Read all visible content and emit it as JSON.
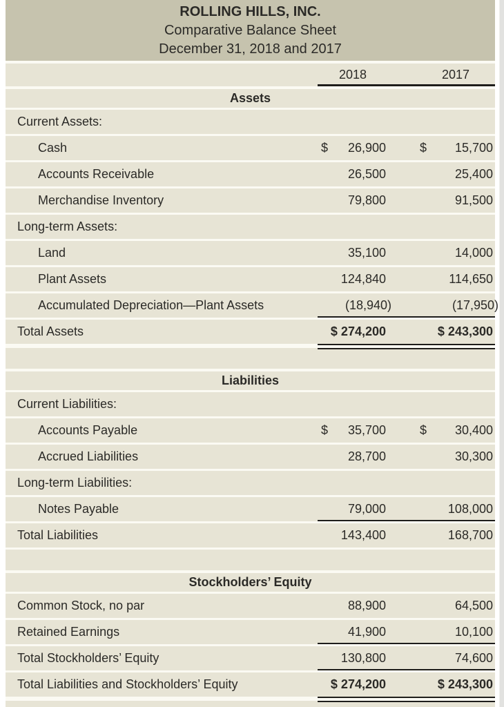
{
  "title_block": {
    "company": "ROLLING HILLS, INC.",
    "statement": "Comparative Balance Sheet",
    "period": "December 31, 2018 and 2017"
  },
  "column_headers": {
    "year1": "2018",
    "year2": "2017"
  },
  "rows": [
    {
      "type": "years",
      "v1": "2018",
      "v2": "2017"
    },
    {
      "type": "section-title",
      "label": "Assets"
    },
    {
      "type": "group",
      "label": "Current Assets:"
    },
    {
      "type": "item",
      "label": "Cash",
      "dollar1": "$",
      "dollar2": "$",
      "v1": "26,900",
      "v2": "15,700"
    },
    {
      "type": "item",
      "label": "Accounts Receivable",
      "v1": "26,500",
      "v2": "25,400"
    },
    {
      "type": "item",
      "label": "Merchandise Inventory",
      "v1": "79,800",
      "v2": "91,500"
    },
    {
      "type": "group",
      "label": "Long-term Assets:"
    },
    {
      "type": "item",
      "label": "Land",
      "v1": "35,100",
      "v2": "14,000"
    },
    {
      "type": "item",
      "label": "Plant Assets",
      "v1": "124,840",
      "v2": "114,650"
    },
    {
      "type": "item",
      "label": "Accumulated Depreciation—Plant Assets",
      "v1": "(18,940)",
      "v2": "(17,950)",
      "negative": true,
      "rule_below": true
    },
    {
      "type": "total",
      "label": "Total Assets",
      "v1": "$ 274,200",
      "v2": "$ 243,300",
      "bold_values": true,
      "double_rule_below": true
    },
    {
      "type": "spacer"
    },
    {
      "type": "section-title",
      "label": "Liabilities"
    },
    {
      "type": "group",
      "label": "Current Liabilities:"
    },
    {
      "type": "item",
      "label": "Accounts Payable",
      "dollar1": "$",
      "dollar2": "$",
      "v1": "35,700",
      "v2": "30,400"
    },
    {
      "type": "item",
      "label": "Accrued Liabilities",
      "v1": "28,700",
      "v2": "30,300"
    },
    {
      "type": "group",
      "label": "Long-term Liabilities:"
    },
    {
      "type": "item",
      "label": "Notes Payable",
      "v1": "79,000",
      "v2": "108,000",
      "rule_below": true
    },
    {
      "type": "total",
      "label": "Total Liabilities",
      "v1": "143,400",
      "v2": "168,700"
    },
    {
      "type": "spacer"
    },
    {
      "type": "section-title",
      "label": "Stockholders’ Equity"
    },
    {
      "type": "group",
      "label": "Common Stock, no par",
      "v1": "88,900",
      "v2": "64,500"
    },
    {
      "type": "group",
      "label": "Retained Earnings",
      "v1": "41,900",
      "v2": "10,100",
      "rule_below": true
    },
    {
      "type": "total",
      "label": "Total Stockholders’ Equity",
      "v1": "130,800",
      "v2": "74,600",
      "rule_below": true
    },
    {
      "type": "total",
      "label": "Total Liabilities and Stockholders’ Equity",
      "v1": "$ 274,200",
      "v2": "$ 243,300",
      "bold_values": true,
      "double_rule_below": true
    },
    {
      "type": "spacer"
    }
  ],
  "colors": {
    "header_band": "#c6c3ae",
    "row_background": "#e7e4d5",
    "text": "#2b2a27",
    "rule": "#1e1d1b",
    "side_strip": "#e2e2e0"
  }
}
